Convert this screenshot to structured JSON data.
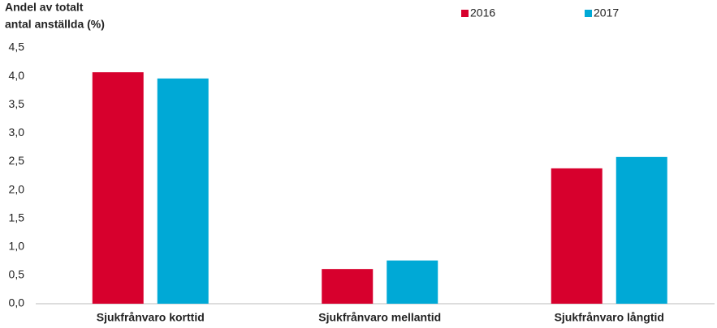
{
  "chart_data": {
    "type": "bar",
    "ylabel": [
      "Andel av totalt",
      "antal anställda (%)"
    ],
    "categories": [
      "Sjukfrånvaro korttid",
      "Sjukfrånvaro mellantid",
      "Sjukfrånvaro långtid"
    ],
    "series": [
      {
        "name": "2016",
        "color": "#d7002d",
        "values": [
          4.07,
          0.61,
          2.38
        ]
      },
      {
        "name": "2017",
        "color": "#00a9d6",
        "values": [
          3.96,
          0.76,
          2.58
        ]
      }
    ],
    "ylim": [
      0,
      4.5
    ],
    "yticks": [
      {
        "value": 0,
        "label": "0,0"
      },
      {
        "value": 0.5,
        "label": "0,5"
      },
      {
        "value": 1,
        "label": "1,0"
      },
      {
        "value": 1.5,
        "label": "1,5"
      },
      {
        "value": 2,
        "label": "2,0"
      },
      {
        "value": 2.5,
        "label": "2,5"
      },
      {
        "value": 3,
        "label": "3,0"
      },
      {
        "value": 3.5,
        "label": "3,5"
      },
      {
        "value": 4,
        "label": "4,0"
      },
      {
        "value": 4.5,
        "label": "4,5"
      }
    ],
    "grid": false,
    "legend": "top"
  }
}
